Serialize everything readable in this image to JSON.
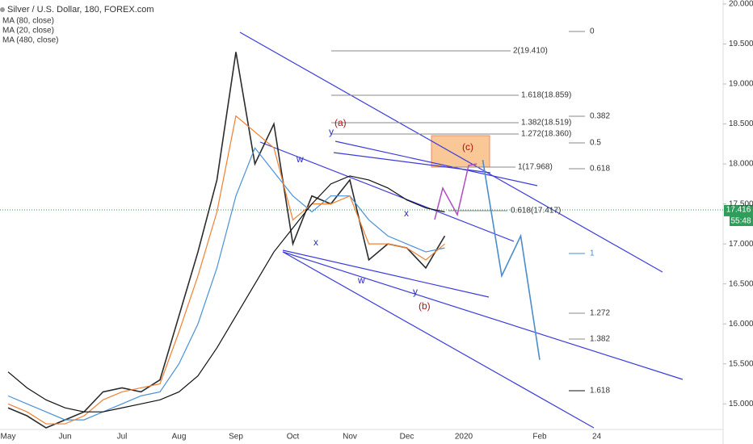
{
  "chart_data": {
    "type": "line",
    "title": "Silver / U.S. Dollar, 180, FOREX.com",
    "categories": [
      "May",
      null,
      null,
      "Jun",
      null,
      null,
      "Jul",
      null,
      null,
      "Aug",
      null,
      null,
      "Sep",
      null,
      null,
      "Oct",
      null,
      null,
      "Nov",
      null,
      null,
      "Dec",
      null,
      null,
      "2020",
      null,
      null,
      null,
      "Feb",
      null,
      null,
      "24"
    ],
    "series": [
      {
        "color": "#2b2b2b",
        "values": [
          14.95,
          14.85,
          14.7,
          14.8,
          14.9,
          15.15,
          15.2,
          15.15,
          15.3,
          16.1,
          16.9,
          17.8,
          19.4,
          18.0,
          18.5,
          17.0,
          17.6,
          17.5,
          17.8,
          16.8,
          17.0,
          16.95,
          16.7,
          17.1,
          null,
          null,
          null,
          null,
          null,
          null,
          null,
          null
        ]
      },
      {
        "name": "MA (80, close)",
        "color": "#4a90d9",
        "values": [
          15.1,
          15.0,
          14.9,
          14.8,
          14.8,
          14.9,
          15.0,
          15.1,
          15.15,
          15.5,
          16.0,
          16.7,
          17.6,
          18.2,
          17.9,
          17.6,
          17.4,
          17.6,
          17.6,
          17.3,
          17.1,
          17.0,
          16.9,
          16.95,
          null,
          null,
          null,
          null,
          null,
          null,
          null,
          null
        ]
      },
      {
        "name": "MA (20, close)",
        "color": "#f08030",
        "values": [
          15.0,
          14.9,
          14.75,
          14.75,
          14.85,
          15.05,
          15.15,
          15.2,
          15.25,
          15.9,
          16.6,
          17.4,
          18.6,
          18.4,
          18.2,
          17.3,
          17.5,
          17.5,
          17.6,
          17.0,
          17.0,
          16.95,
          16.8,
          17.0,
          null,
          null,
          null,
          null,
          null,
          null,
          null,
          null
        ]
      },
      {
        "name": "MA (480, close)",
        "color": "#111111",
        "values": [
          15.4,
          15.2,
          15.05,
          14.95,
          14.9,
          14.9,
          14.95,
          15.0,
          15.05,
          15.15,
          15.35,
          15.7,
          16.1,
          16.5,
          16.9,
          17.2,
          17.5,
          17.75,
          17.85,
          17.8,
          17.7,
          17.55,
          17.45,
          17.4,
          null,
          null,
          null,
          null,
          null,
          null,
          null,
          null
        ]
      },
      {
        "color": "#4a8ccc",
        "values": [
          null,
          null,
          null,
          null,
          null,
          null,
          null,
          null,
          null,
          null,
          null,
          null,
          null,
          null,
          null,
          null,
          null,
          null,
          null,
          null,
          null,
          null,
          null,
          null,
          null,
          18.05,
          16.6,
          17.1,
          15.55,
          null,
          null,
          null
        ]
      }
    ],
    "ylim": [
      14.7,
      20.05
    ],
    "yticks": [
      {
        "value": 15,
        "label": "15.000"
      },
      {
        "value": 15.5,
        "label": "15.500"
      },
      {
        "value": 16,
        "label": "16.000"
      },
      {
        "value": 16.5,
        "label": "16.500"
      },
      {
        "value": 17,
        "label": "17.000"
      },
      {
        "value": 17.5,
        "label": "17.500"
      },
      {
        "value": 18,
        "label": "18.000"
      },
      {
        "value": 18.5,
        "label": "18.500"
      },
      {
        "value": 19,
        "label": "19.000"
      },
      {
        "value": 19.5,
        "label": "19.500"
      },
      {
        "value": 20,
        "label": "20.000"
      }
    ],
    "grid": false,
    "price_tag": {
      "value": {
        "value": 17.416,
        "label": "17.416"
      },
      "countdown": "55:48"
    },
    "waves": [
      "(a)",
      "y",
      "w",
      "x",
      "w",
      "x",
      "y",
      "(b)",
      "(c)"
    ],
    "fib_left": [
      "2(19.410)",
      "1.618(18.859)",
      "1.382(18.519)",
      "1.272(18.360)",
      "1(17.968)",
      "0.618(17.417)"
    ],
    "fib_right": [
      "0",
      "0.382",
      "0.5",
      "0.618",
      "1",
      "1.272",
      "1.382",
      "1.618"
    ]
  }
}
